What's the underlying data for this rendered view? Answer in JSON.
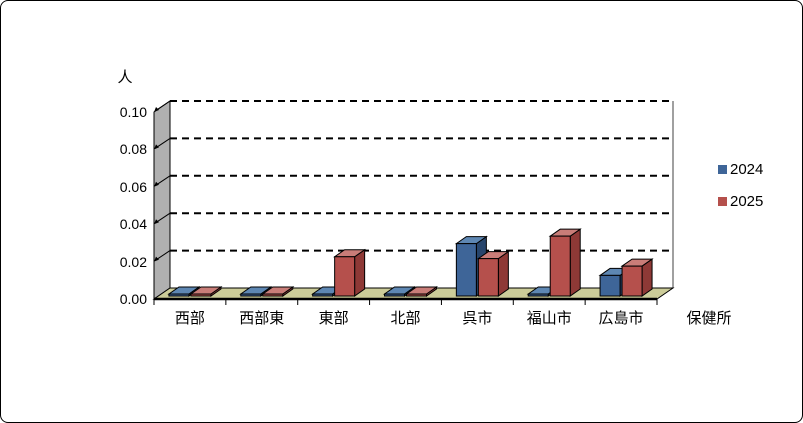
{
  "window": {
    "background": "#FFFFFF",
    "border_color": "#000000"
  },
  "chart_data": {
    "type": "bar",
    "variant": "3d-clustered-column",
    "title": "",
    "ylabel": "人",
    "xlabel": "保健所",
    "categories": [
      "西部",
      "西部東",
      "東部",
      "北部",
      "呉市",
      "福山市",
      "広島市"
    ],
    "series": [
      {
        "name": "2024",
        "values": [
          0,
          0,
          0,
          0,
          0.028,
          0,
          0.011
        ],
        "color": "#3E6598",
        "color_top": "#5E87B3",
        "color_side": "#27456C"
      },
      {
        "name": "2025",
        "values": [
          0,
          0,
          0.021,
          0,
          0.02,
          0.032,
          0.016
        ],
        "color": "#B5504C",
        "color_top": "#C97D78",
        "color_side": "#8E3936"
      }
    ],
    "ylim": [
      0,
      0.1
    ],
    "ytick_step": 0.02,
    "ytick_labels": [
      "0.10",
      "0.08",
      "0.06",
      "0.04",
      "0.02",
      "0.00"
    ],
    "grid": "dashed-horizontal",
    "legend_position": "right",
    "colors": {
      "floor": "#CCCC99",
      "wall": "#B0B0B0",
      "back_wall": "#FFFFFF",
      "gridline": "#000000",
      "outline": "#000000",
      "wall_right_edge": "#808080"
    }
  }
}
